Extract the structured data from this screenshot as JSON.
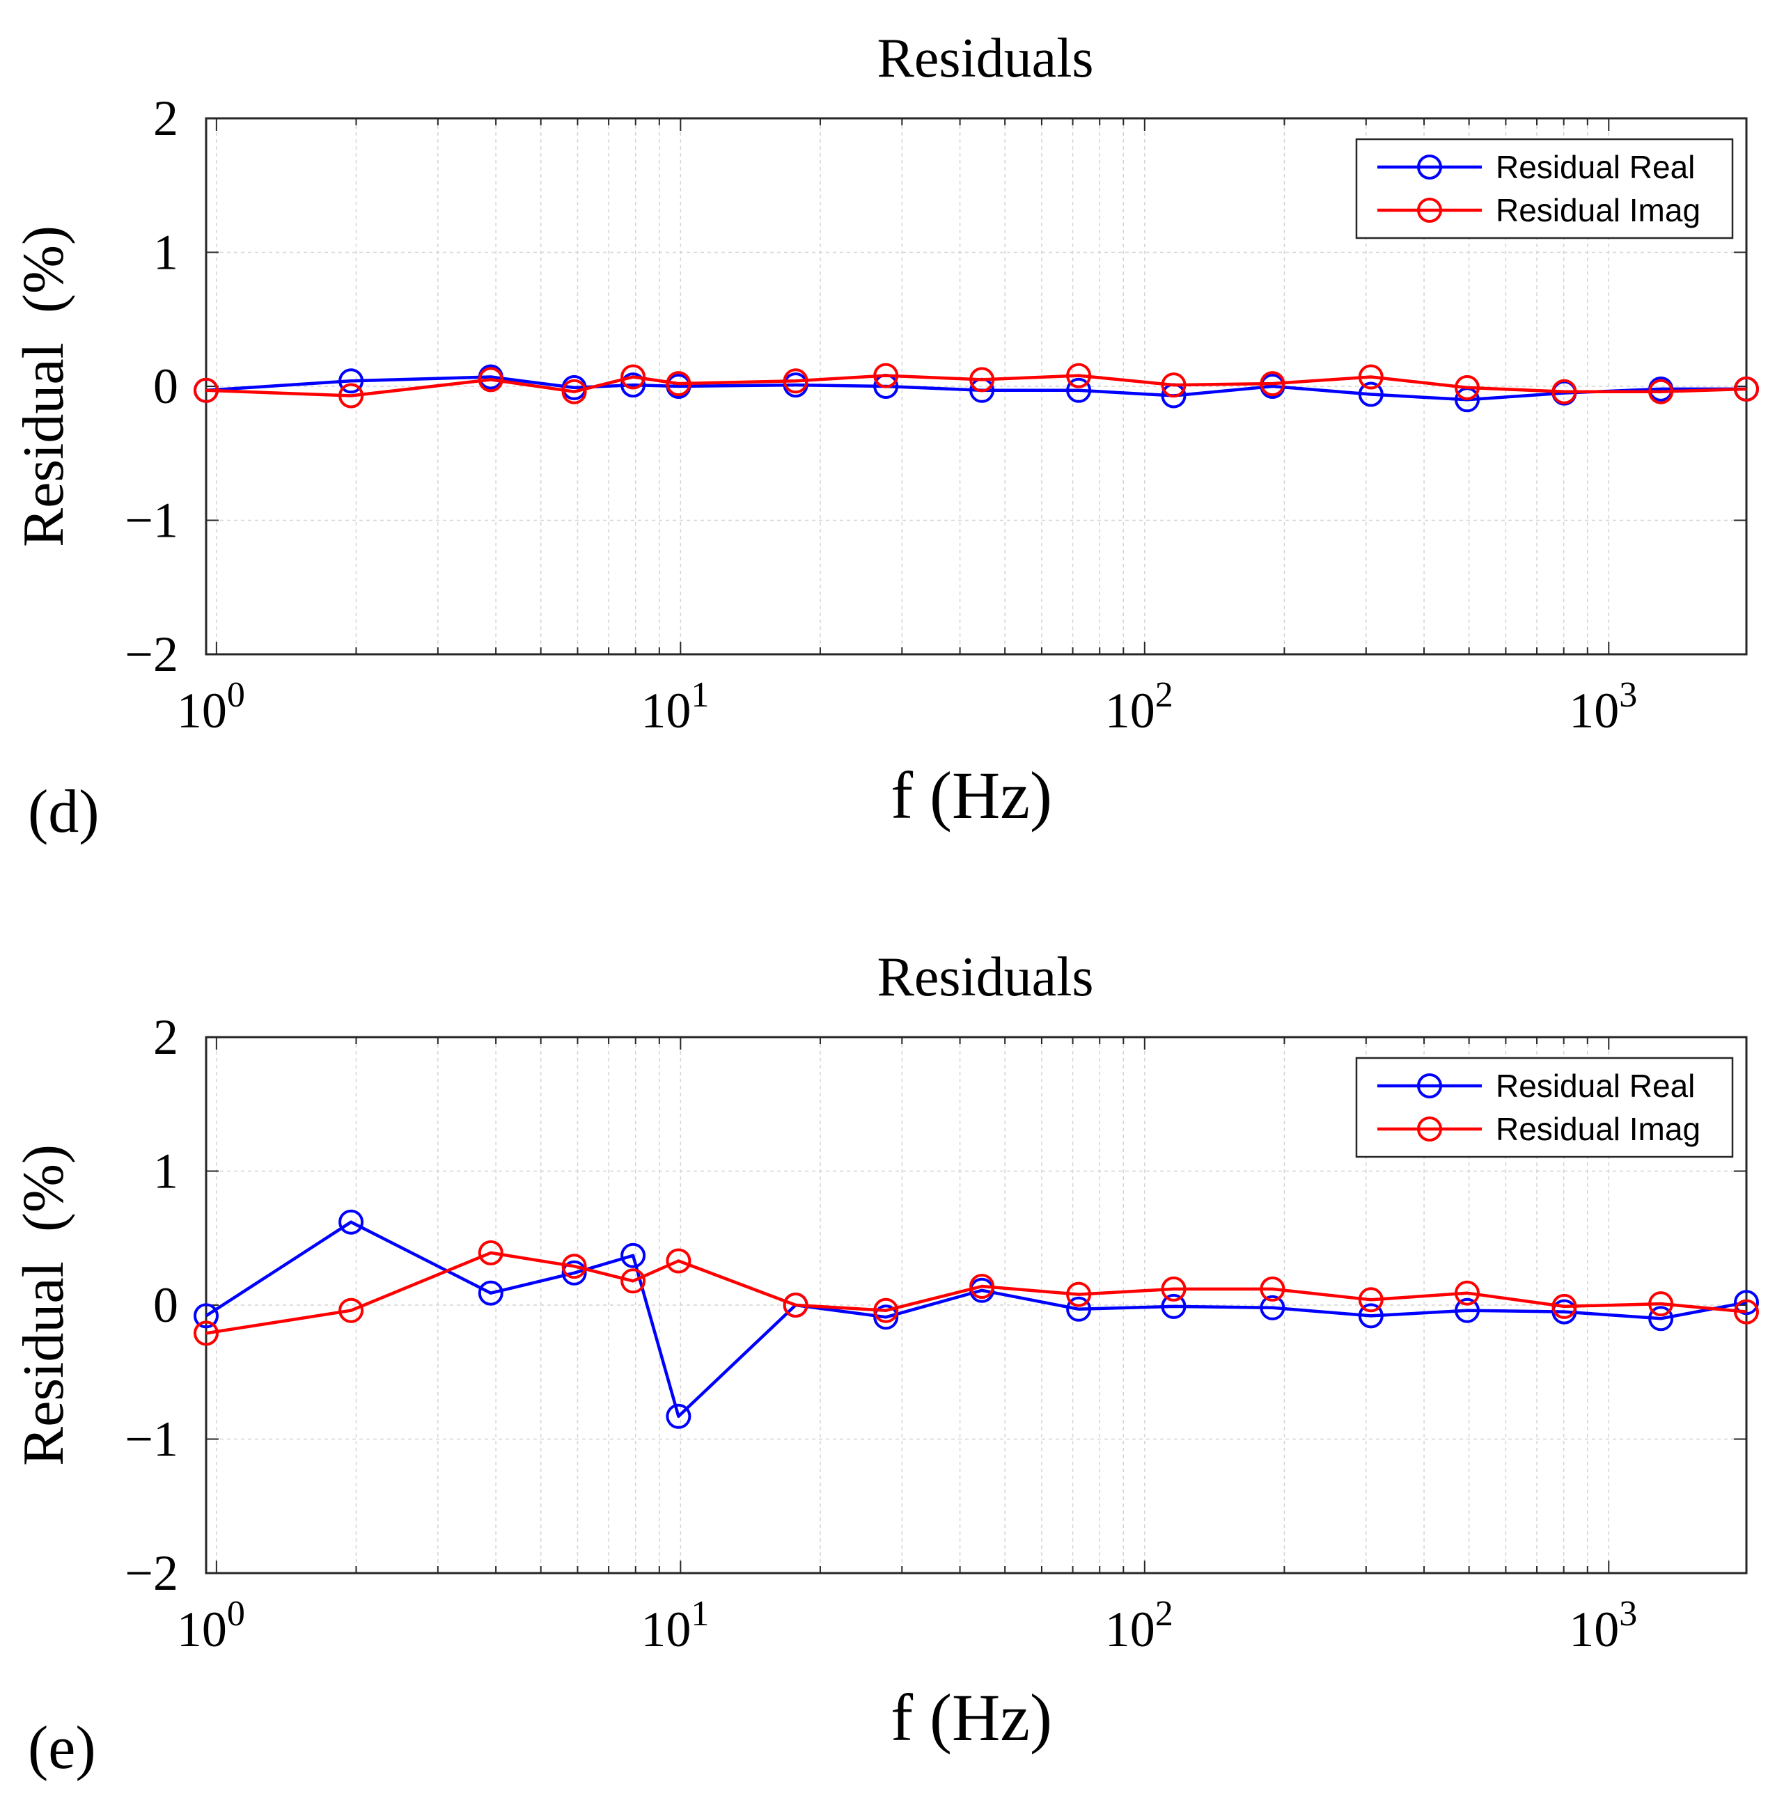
{
  "colors": {
    "real": "#0000ff",
    "imag": "#ff0000",
    "axis": "#262626",
    "grid": "#d4d4d4"
  },
  "chart_data": [
    {
      "type": "line",
      "panel_label": "(d)",
      "title": "Residuals",
      "xlabel": "f (Hz)",
      "ylabel": "Residual  (%)",
      "xscale": "log",
      "xlim": [
        0.95,
        1980
      ],
      "ylim": [
        -2,
        2
      ],
      "grid": true,
      "legend_position": "top-right",
      "x_tick_labels": [
        {
          "base": "10",
          "exp": "0",
          "value": 1
        },
        {
          "base": "10",
          "exp": "1",
          "value": 10
        },
        {
          "base": "10",
          "exp": "2",
          "value": 100
        },
        {
          "base": "10",
          "exp": "3",
          "value": 1000
        }
      ],
      "y_tick_labels": [
        "2",
        "1",
        "0",
        "−1",
        "−2"
      ],
      "y_tick_values": [
        2,
        1,
        0,
        -1,
        -2
      ],
      "x": [
        0.95,
        1.95,
        3.9,
        5.9,
        7.9,
        9.9,
        17.7,
        27.7,
        44.6,
        72.1,
        115.5,
        188.6,
        307.3,
        495.4,
        802.1,
        1294.8,
        1980
      ],
      "series": [
        {
          "name": "Residual Real",
          "color": "#0000ff",
          "values": [
            -0.03,
            0.04,
            0.07,
            -0.01,
            0.01,
            0.0,
            0.01,
            0.0,
            -0.03,
            -0.03,
            -0.07,
            0.0,
            -0.06,
            -0.1,
            -0.05,
            -0.02,
            -0.02
          ]
        },
        {
          "name": "Residual Imag",
          "color": "#ff0000",
          "values": [
            -0.03,
            -0.07,
            0.05,
            -0.04,
            0.07,
            0.02,
            0.04,
            0.08,
            0.05,
            0.08,
            0.01,
            0.02,
            0.07,
            -0.01,
            -0.04,
            -0.04,
            -0.02
          ]
        }
      ]
    },
    {
      "type": "line",
      "panel_label": "(e)",
      "title": "Residuals",
      "xlabel": "f (Hz)",
      "ylabel": "Residual  (%)",
      "xscale": "log",
      "xlim": [
        0.95,
        1980
      ],
      "ylim": [
        -2,
        2
      ],
      "grid": true,
      "legend_position": "top-right",
      "x_tick_labels": [
        {
          "base": "10",
          "exp": "0",
          "value": 1
        },
        {
          "base": "10",
          "exp": "1",
          "value": 10
        },
        {
          "base": "10",
          "exp": "2",
          "value": 100
        },
        {
          "base": "10",
          "exp": "3",
          "value": 1000
        }
      ],
      "y_tick_labels": [
        "2",
        "1",
        "0",
        "−1",
        "−2"
      ],
      "y_tick_values": [
        2,
        1,
        0,
        -1,
        -2
      ],
      "x": [
        0.95,
        1.95,
        3.9,
        5.9,
        7.9,
        9.9,
        17.7,
        27.7,
        44.6,
        72.1,
        115.5,
        188.6,
        307.3,
        495.4,
        802.1,
        1294.8,
        1980
      ],
      "series": [
        {
          "name": "Residual Real",
          "color": "#0000ff",
          "values": [
            -0.08,
            0.62,
            0.09,
            0.24,
            0.37,
            -0.83,
            0.0,
            -0.09,
            0.11,
            -0.03,
            -0.01,
            -0.02,
            -0.08,
            -0.04,
            -0.05,
            -0.1,
            0.02
          ]
        },
        {
          "name": "Residual Imag",
          "color": "#ff0000",
          "values": [
            -0.21,
            -0.04,
            0.39,
            0.29,
            0.18,
            0.33,
            0.0,
            -0.04,
            0.14,
            0.08,
            0.12,
            0.12,
            0.04,
            0.09,
            -0.01,
            0.01,
            -0.05
          ]
        }
      ]
    }
  ]
}
